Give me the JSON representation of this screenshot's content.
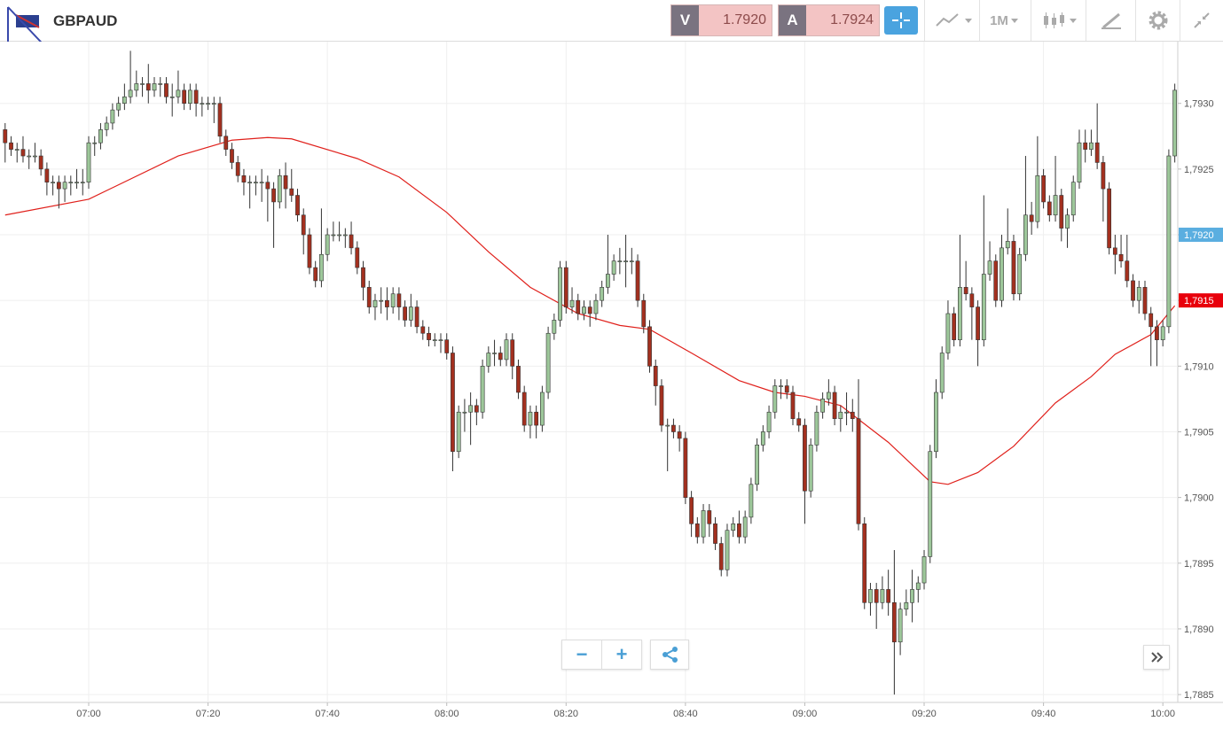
{
  "header": {
    "symbol": "GBPAUD",
    "sell": {
      "letter": "V",
      "price": "1.7920"
    },
    "buy": {
      "letter": "A",
      "price": "1.7924"
    },
    "timeframe": "1M"
  },
  "chart_data": {
    "type": "candlestick",
    "categories": [
      null,
      null,
      null,
      null,
      null,
      null,
      null,
      null,
      null,
      null,
      null,
      null,
      null,
      null,
      "07:00",
      null,
      null,
      null,
      null,
      null,
      null,
      null,
      null,
      null,
      null,
      null,
      null,
      null,
      null,
      null,
      null,
      null,
      null,
      null,
      "07:20",
      null,
      null,
      null,
      null,
      null,
      null,
      null,
      null,
      null,
      null,
      null,
      null,
      null,
      null,
      null,
      null,
      null,
      null,
      null,
      "07:40",
      null,
      null,
      null,
      null,
      null,
      null,
      null,
      null,
      null,
      null,
      null,
      null,
      null,
      null,
      null,
      null,
      null,
      null,
      null,
      "08:00",
      null,
      null,
      null,
      null,
      null,
      null,
      null,
      null,
      null,
      null,
      null,
      null,
      null,
      null,
      null,
      null,
      null,
      null,
      null,
      "08:20",
      null,
      null,
      null,
      null,
      null,
      null,
      null,
      null,
      null,
      null,
      null,
      null,
      null,
      null,
      null,
      null,
      null,
      null,
      null,
      "08:40",
      null,
      null,
      null,
      null,
      null,
      null,
      null,
      null,
      null,
      null,
      null,
      null,
      null,
      null,
      null,
      null,
      null,
      null,
      null,
      "09:00",
      null,
      null,
      null,
      null,
      null,
      null,
      null,
      null,
      null,
      null,
      null,
      null,
      null,
      null,
      null,
      null,
      null,
      null,
      null,
      "09:20",
      null,
      null,
      null,
      null,
      null,
      null,
      null,
      null,
      null,
      null,
      null,
      null,
      null,
      null,
      null,
      null,
      null,
      null,
      null,
      "09:40",
      null,
      null,
      null,
      null,
      null,
      null,
      null,
      null,
      null,
      null,
      null,
      null,
      null,
      null,
      null,
      null,
      null,
      null,
      null,
      "10:00",
      null,
      null
    ],
    "open": [
      1.7928,
      1.7927,
      1.79265,
      1.79265,
      1.7926,
      1.7926,
      1.7926,
      1.7925,
      1.7924,
      1.7924,
      1.79235,
      1.7924,
      1.7924,
      1.7924,
      1.7924,
      1.7927,
      1.7927,
      1.7928,
      1.79285,
      1.79295,
      1.793,
      1.79305,
      1.7931,
      1.79315,
      1.79315,
      1.7931,
      1.79315,
      1.79315,
      1.79305,
      1.79305,
      1.7931,
      1.793,
      1.7931,
      1.793,
      1.793,
      1.793,
      1.793,
      1.79275,
      1.79265,
      1.79255,
      1.79245,
      1.7924,
      1.7924,
      1.7924,
      1.7924,
      1.79235,
      1.79225,
      1.79245,
      1.79235,
      1.7923,
      1.79215,
      1.792,
      1.79175,
      1.79165,
      1.79185,
      1.792,
      1.792,
      1.792,
      1.792,
      1.7919,
      1.79175,
      1.7916,
      1.79145,
      1.7915,
      1.7915,
      1.79145,
      1.79155,
      1.79145,
      1.79135,
      1.79145,
      1.7913,
      1.79125,
      1.7912,
      1.7912,
      1.7912,
      1.7911,
      1.79035,
      1.79065,
      1.79065,
      1.7907,
      1.79065,
      1.791,
      1.7911,
      1.7911,
      1.79105,
      1.7912,
      1.791,
      1.7908,
      1.79055,
      1.79065,
      1.79055,
      1.7908,
      1.79125,
      1.79135,
      1.79175,
      1.79145,
      1.7915,
      1.7914,
      1.79145,
      1.7914,
      1.7915,
      1.7916,
      1.7917,
      1.7918,
      1.7918,
      1.7918,
      1.7918,
      1.7915,
      1.7913,
      1.791,
      1.79085,
      1.79055,
      1.79055,
      1.7905,
      1.79045,
      1.79,
      1.7898,
      1.7897,
      1.7899,
      1.7898,
      1.78965,
      1.78945,
      1.78975,
      1.7898,
      1.7897,
      1.78985,
      1.7901,
      1.7904,
      1.7905,
      1.79065,
      1.79085,
      1.79085,
      1.7908,
      1.7906,
      1.79055,
      1.79005,
      1.7904,
      1.79065,
      1.79075,
      1.7908,
      1.7906,
      1.79065,
      1.79065,
      1.7906,
      1.7898,
      1.7892,
      1.7893,
      1.7892,
      1.7893,
      1.7892,
      1.7889,
      1.78915,
      1.7892,
      1.7893,
      1.78935,
      1.78955,
      1.79035,
      1.7908,
      1.7911,
      1.7914,
      1.7912,
      1.7916,
      1.79155,
      1.79145,
      1.7912,
      1.7917,
      1.7918,
      1.7915,
      1.7919,
      1.79195,
      1.79155,
      1.79185,
      1.79215,
      1.7921,
      1.79245,
      1.79225,
      1.79215,
      1.7923,
      1.79205,
      1.79215,
      1.7924,
      1.7927,
      1.79265,
      1.7927,
      1.79255,
      1.79235,
      1.7919,
      1.79185,
      1.7918,
      1.79165,
      1.7915,
      1.7916,
      1.7914,
      1.7913,
      1.7912,
      1.7913,
      1.7926
    ],
    "high": [
      1.79285,
      1.79275,
      1.7927,
      1.79275,
      1.79265,
      1.7927,
      1.79265,
      1.79255,
      1.79245,
      1.79245,
      1.79245,
      1.79245,
      1.7925,
      1.7925,
      1.79275,
      1.79275,
      1.79285,
      1.7929,
      1.793,
      1.79305,
      1.79315,
      1.7934,
      1.79325,
      1.7932,
      1.7933,
      1.7932,
      1.7932,
      1.7932,
      1.79315,
      1.79325,
      1.79315,
      1.79315,
      1.79315,
      1.79305,
      1.79305,
      1.79305,
      1.79305,
      1.7928,
      1.7927,
      1.7926,
      1.7925,
      1.79245,
      1.79245,
      1.7925,
      1.79245,
      1.7924,
      1.7925,
      1.79255,
      1.7925,
      1.79235,
      1.7922,
      1.79205,
      1.7918,
      1.7922,
      1.79205,
      1.7921,
      1.7921,
      1.79205,
      1.7921,
      1.79195,
      1.7918,
      1.79165,
      1.79155,
      1.7916,
      1.7916,
      1.7916,
      1.7916,
      1.7915,
      1.79155,
      1.7915,
      1.79135,
      1.7913,
      1.79125,
      1.79125,
      1.79125,
      1.79115,
      1.7907,
      1.79075,
      1.7908,
      1.79075,
      1.79105,
      1.79115,
      1.7912,
      1.79115,
      1.79125,
      1.79125,
      1.79105,
      1.79085,
      1.7907,
      1.7907,
      1.79085,
      1.7913,
      1.7914,
      1.7918,
      1.7918,
      1.7916,
      1.79155,
      1.7915,
      1.7915,
      1.79155,
      1.79165,
      1.792,
      1.79185,
      1.7919,
      1.792,
      1.7919,
      1.79185,
      1.79155,
      1.79135,
      1.79105,
      1.7909,
      1.7906,
      1.7906,
      1.79055,
      1.7905,
      1.79005,
      1.78985,
      1.78995,
      1.78995,
      1.78985,
      1.7897,
      1.7898,
      1.78985,
      1.7899,
      1.7899,
      1.79015,
      1.79045,
      1.79055,
      1.7907,
      1.7909,
      1.7909,
      1.7909,
      1.79085,
      1.79065,
      1.7906,
      1.79045,
      1.7907,
      1.7908,
      1.7909,
      1.79085,
      1.7907,
      1.7908,
      1.79075,
      1.7909,
      1.78985,
      1.78935,
      1.78935,
      1.7894,
      1.78945,
      1.7896,
      1.7892,
      1.7893,
      1.78945,
      1.7894,
      1.7896,
      1.7904,
      1.7909,
      1.79115,
      1.7915,
      1.79145,
      1.792,
      1.7918,
      1.7916,
      1.7915,
      1.7923,
      1.79195,
      1.79185,
      1.792,
      1.7922,
      1.792,
      1.7919,
      1.7926,
      1.79225,
      1.79275,
      1.7925,
      1.7923,
      1.7926,
      1.79235,
      1.7922,
      1.79245,
      1.7928,
      1.7928,
      1.7928,
      1.793,
      1.7926,
      1.7924,
      1.792,
      1.792,
      1.792,
      1.7917,
      1.79165,
      1.79165,
      1.79145,
      1.79135,
      1.79135,
      1.79265,
      1.79315
    ],
    "low": [
      1.79255,
      1.7926,
      1.79255,
      1.79255,
      1.7925,
      1.79255,
      1.79245,
      1.7923,
      1.7923,
      1.7922,
      1.79225,
      1.7923,
      1.79235,
      1.7923,
      1.79235,
      1.7926,
      1.79265,
      1.79275,
      1.7928,
      1.7929,
      1.79295,
      1.793,
      1.79305,
      1.79305,
      1.793,
      1.79305,
      1.79305,
      1.793,
      1.7929,
      1.793,
      1.79295,
      1.79295,
      1.7929,
      1.7929,
      1.79295,
      1.79285,
      1.7927,
      1.7926,
      1.7925,
      1.7924,
      1.7923,
      1.7922,
      1.7923,
      1.79225,
      1.7921,
      1.7919,
      1.7922,
      1.7922,
      1.79225,
      1.7921,
      1.79185,
      1.7917,
      1.7916,
      1.7916,
      1.7918,
      1.79195,
      1.79195,
      1.7919,
      1.79185,
      1.7917,
      1.7915,
      1.7914,
      1.79135,
      1.7914,
      1.79135,
      1.7914,
      1.79135,
      1.7913,
      1.7913,
      1.79125,
      1.7912,
      1.79115,
      1.79115,
      1.7911,
      1.79105,
      1.7902,
      1.7903,
      1.7905,
      1.7904,
      1.79055,
      1.7906,
      1.79095,
      1.791,
      1.791,
      1.791,
      1.7909,
      1.79075,
      1.7905,
      1.79045,
      1.79045,
      1.7905,
      1.79075,
      1.7912,
      1.7913,
      1.7914,
      1.7914,
      1.79135,
      1.79135,
      1.7913,
      1.79135,
      1.79145,
      1.79155,
      1.79165,
      1.7917,
      1.7916,
      1.7917,
      1.79145,
      1.79125,
      1.79095,
      1.7907,
      1.7905,
      1.7902,
      1.79045,
      1.79035,
      1.78995,
      1.7897,
      1.78965,
      1.78965,
      1.7897,
      1.7896,
      1.7894,
      1.7894,
      1.7897,
      1.78965,
      1.78965,
      1.7898,
      1.79005,
      1.79035,
      1.79045,
      1.7906,
      1.79075,
      1.79075,
      1.79055,
      1.7905,
      1.7898,
      1.79,
      1.79035,
      1.7906,
      1.7907,
      1.79055,
      1.7905,
      1.79055,
      1.7905,
      1.78975,
      1.78915,
      1.7891,
      1.789,
      1.78915,
      1.7891,
      1.7885,
      1.7888,
      1.7891,
      1.78905,
      1.7892,
      1.7893,
      1.7895,
      1.7903,
      1.79075,
      1.79105,
      1.79115,
      1.79115,
      1.7915,
      1.7912,
      1.791,
      1.79115,
      1.79165,
      1.79145,
      1.79145,
      1.79185,
      1.7915,
      1.7915,
      1.7918,
      1.792,
      1.79205,
      1.7922,
      1.7921,
      1.7921,
      1.79195,
      1.7919,
      1.7921,
      1.79235,
      1.79255,
      1.7926,
      1.7925,
      1.7921,
      1.79185,
      1.7917,
      1.79175,
      1.7916,
      1.79145,
      1.7914,
      1.79135,
      1.791,
      1.791,
      1.79115,
      1.79125,
      1.79255
    ],
    "close": [
      1.7927,
      1.79265,
      1.79265,
      1.7926,
      1.7926,
      1.7926,
      1.7925,
      1.7924,
      1.7924,
      1.79235,
      1.7924,
      1.7924,
      1.7924,
      1.7924,
      1.7927,
      1.7927,
      1.7928,
      1.79285,
      1.79295,
      1.793,
      1.79305,
      1.7931,
      1.79315,
      1.79315,
      1.7931,
      1.79315,
      1.79315,
      1.79305,
      1.79305,
      1.7931,
      1.793,
      1.7931,
      1.793,
      1.793,
      1.793,
      1.793,
      1.79275,
      1.79265,
      1.79255,
      1.79245,
      1.7924,
      1.7924,
      1.7924,
      1.7924,
      1.79235,
      1.79225,
      1.79245,
      1.79235,
      1.7923,
      1.79215,
      1.792,
      1.79175,
      1.79165,
      1.79185,
      1.792,
      1.792,
      1.792,
      1.792,
      1.7919,
      1.79175,
      1.7916,
      1.79145,
      1.7915,
      1.7915,
      1.79145,
      1.79155,
      1.79145,
      1.79135,
      1.79145,
      1.7913,
      1.79125,
      1.7912,
      1.7912,
      1.7912,
      1.7911,
      1.79035,
      1.79065,
      1.79065,
      1.7907,
      1.79065,
      1.791,
      1.7911,
      1.7911,
      1.79105,
      1.7912,
      1.791,
      1.7908,
      1.79055,
      1.79065,
      1.79055,
      1.7908,
      1.79125,
      1.79135,
      1.79175,
      1.79145,
      1.7915,
      1.7914,
      1.79145,
      1.7914,
      1.7915,
      1.7916,
      1.7917,
      1.7918,
      1.7918,
      1.7918,
      1.7918,
      1.7915,
      1.7913,
      1.791,
      1.79085,
      1.79055,
      1.79055,
      1.7905,
      1.79045,
      1.79,
      1.7898,
      1.7897,
      1.7899,
      1.7898,
      1.78965,
      1.78945,
      1.78975,
      1.7898,
      1.7897,
      1.78985,
      1.7901,
      1.7904,
      1.7905,
      1.79065,
      1.79085,
      1.79085,
      1.7908,
      1.7906,
      1.79055,
      1.79005,
      1.7904,
      1.79065,
      1.79075,
      1.7908,
      1.7906,
      1.79065,
      1.79065,
      1.7906,
      1.7898,
      1.7892,
      1.7893,
      1.7892,
      1.7893,
      1.7892,
      1.7889,
      1.78915,
      1.7892,
      1.7893,
      1.78935,
      1.78955,
      1.79035,
      1.7908,
      1.7911,
      1.7914,
      1.7912,
      1.7916,
      1.79155,
      1.79145,
      1.7912,
      1.7917,
      1.7918,
      1.7915,
      1.7919,
      1.79195,
      1.79155,
      1.79185,
      1.79215,
      1.7921,
      1.79245,
      1.79225,
      1.79215,
      1.7923,
      1.79205,
      1.79215,
      1.7924,
      1.7927,
      1.79265,
      1.7927,
      1.79255,
      1.79235,
      1.7919,
      1.79185,
      1.7918,
      1.79165,
      1.7915,
      1.7916,
      1.7914,
      1.7913,
      1.7912,
      1.7913,
      1.7926,
      1.7931
    ],
    "up_color": "#9dc79a",
    "down_color": "#a3301f",
    "moving_average": {
      "color": "#e0201b",
      "x": [
        0,
        14,
        29,
        38,
        44,
        48,
        59,
        66,
        74,
        81,
        88,
        96,
        103,
        108,
        115,
        123,
        129,
        134,
        140,
        148,
        155,
        158,
        163,
        169,
        176,
        182,
        186,
        192,
        196
      ],
      "values": [
        1.79215,
        1.79227,
        1.7926,
        1.79272,
        1.79274,
        1.79273,
        1.79258,
        1.79244,
        1.79217,
        1.79187,
        1.7916,
        1.7914,
        1.79131,
        1.79128,
        1.7911,
        1.79089,
        1.7908,
        1.79077,
        1.7907,
        1.79042,
        1.79012,
        1.7901,
        1.79019,
        1.79039,
        1.79072,
        1.79092,
        1.79109,
        1.79124,
        1.79146
      ]
    },
    "xlim": [
      -0.86,
      196.5
    ],
    "ylim": [
      1.78844,
      1.79347
    ],
    "yticks": [
      {
        "value": 1.7885,
        "label": "1,7885"
      },
      {
        "value": 1.789,
        "label": "1,7890"
      },
      {
        "value": 1.7895,
        "label": "1,7895"
      },
      {
        "value": 1.79,
        "label": "1,7900"
      },
      {
        "value": 1.7905,
        "label": "1,7905"
      },
      {
        "value": 1.791,
        "label": "1,7910"
      },
      {
        "value": 1.7915,
        "label": "1,7915"
      },
      {
        "value": 1.792,
        "label": "1,7920"
      },
      {
        "value": 1.7925,
        "label": "1,7925"
      },
      {
        "value": 1.793,
        "label": "1,7930"
      }
    ],
    "price_markers": [
      {
        "value": 1.792,
        "label": "1,7920",
        "color": "#5aaee0"
      },
      {
        "value": 1.7915,
        "label": "1,7915",
        "color": "#e8000b"
      }
    ],
    "grid": true
  }
}
